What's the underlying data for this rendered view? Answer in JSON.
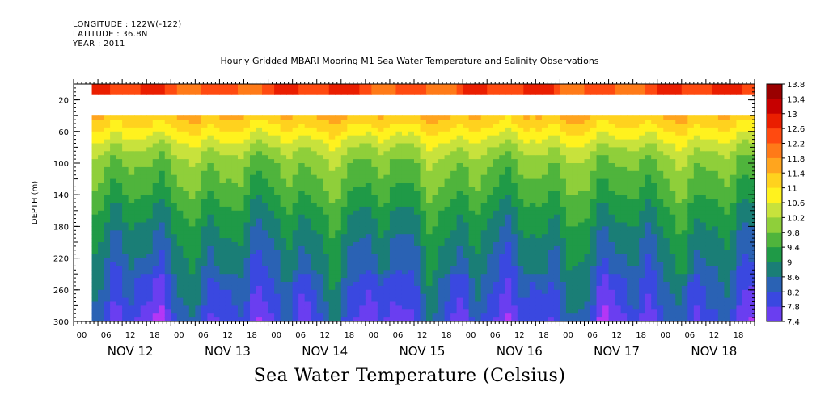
{
  "header": {
    "longitude": "LONGITUDE : 122W(-122)",
    "latitude": "LATITUDE : 36.8N",
    "year": "YEAR : 2011"
  },
  "chart_data": {
    "type": "heatmap",
    "title": "Hourly Gridded MBARI Mooring M1 Sea Water Temperature and Salinity Observations",
    "variable_title": "Sea Water Temperature (Celsius)",
    "ylabel": "DEPTH (m)",
    "ylim": [
      0,
      300
    ],
    "y_inverted": true,
    "y_ticks": [
      20,
      60,
      100,
      140,
      180,
      220,
      260,
      300
    ],
    "x_hour_ticks": [
      "00",
      "06",
      "12",
      "18",
      "00",
      "06",
      "12",
      "18",
      "00",
      "06",
      "12",
      "18",
      "00",
      "06",
      "12",
      "18",
      "00",
      "06",
      "12",
      "18",
      "00",
      "06",
      "12",
      "18",
      "00",
      "06",
      "12",
      "18"
    ],
    "x_days": [
      "NOV 12",
      "NOV 13",
      "NOV 14",
      "NOV 15",
      "NOV 16",
      "NOV 17",
      "NOV 18"
    ],
    "time_range_hours": [
      0,
      168
    ],
    "data_start_hour": 4.5,
    "data_gap_depth_m": [
      14,
      40
    ],
    "colorbar": {
      "levels": [
        "13.8",
        "13.4",
        "13",
        "12.6",
        "12.2",
        "11.8",
        "11.4",
        "11",
        "10.6",
        "10.2",
        "9.8",
        "9.4",
        "9",
        "8.6",
        "8.2",
        "7.8",
        "7.4"
      ],
      "min": 7.4,
      "max": 13.8
    },
    "surface_temp_c": 12.4,
    "temperature_profile": [
      {
        "depth": 40,
        "temp": 11.4
      },
      {
        "depth": 55,
        "temp": 11.0
      },
      {
        "depth": 80,
        "temp": 10.3
      },
      {
        "depth": 100,
        "temp": 9.9
      },
      {
        "depth": 130,
        "temp": 9.6
      },
      {
        "depth": 160,
        "temp": 9.2
      },
      {
        "depth": 200,
        "temp": 8.8
      },
      {
        "depth": 240,
        "temp": 8.5
      },
      {
        "depth": 270,
        "temp": 8.3
      },
      {
        "depth": 300,
        "temp": 8.0
      }
    ]
  }
}
